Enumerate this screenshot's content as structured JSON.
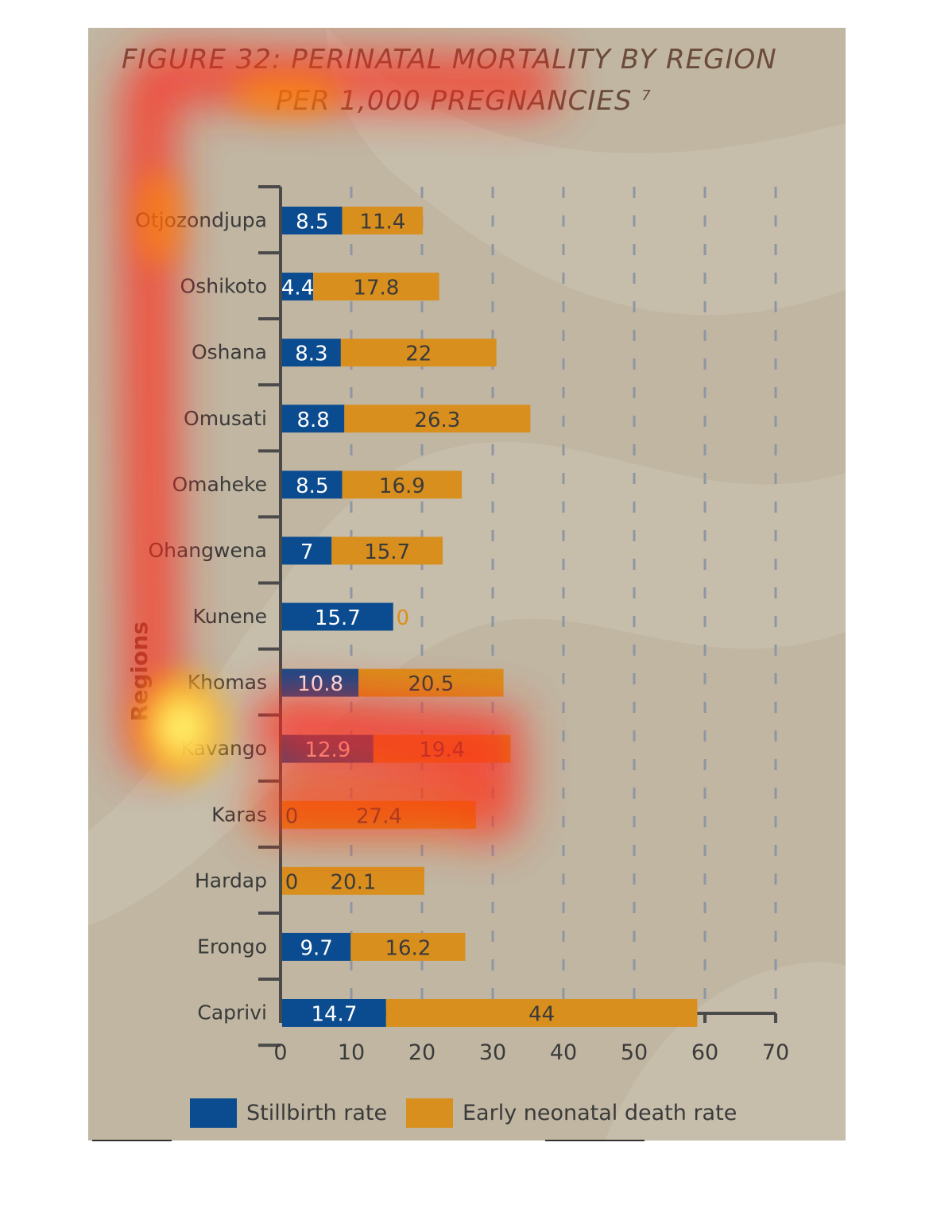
{
  "colors": {
    "stillbirth": "#0b4b8f",
    "early_neonatal": "#d98f1e",
    "axis": "#4a4a4a",
    "grid": "#8e96a4",
    "region_label": "#3a3a3a",
    "title": "#6b4b3a"
  },
  "title": {
    "line1": "FIGURE 32: PERINATAL MORTALITY BY REGION",
    "line2": "PER 1,000 PREGNANCIES",
    "footnote": "7"
  },
  "chart_data": {
    "type": "bar",
    "orientation": "horizontal",
    "stacked": true,
    "ylabel": "Regions",
    "xlim": [
      0,
      70
    ],
    "xticks": [
      "0",
      "10",
      "20",
      "30",
      "40",
      "50",
      "60",
      "70"
    ],
    "grid": "vertical dashed",
    "legend_position": "bottom",
    "categories": [
      "Otjozondjupa",
      "Oshikoto",
      "Oshana",
      "Omusati",
      "Omaheke",
      "Ohangwena",
      "Kunene",
      "Khomas",
      "Kavango",
      "Karas",
      "Hardap",
      "Erongo",
      "Caprivi"
    ],
    "series": [
      {
        "name": "Stillbirth rate",
        "color": "#0b4b8f",
        "values": [
          8.5,
          4.4,
          8.3,
          8.8,
          8.5,
          7,
          15.7,
          10.8,
          12.9,
          0,
          0,
          9.7,
          14.7
        ],
        "labels": [
          "8.5",
          "4.4",
          "8.3",
          "8.8",
          "8.5",
          "7",
          "15.7",
          "10.8",
          "12.9",
          "0",
          "0",
          "9.7",
          "14.7"
        ]
      },
      {
        "name": "Early neonatal death rate",
        "color": "#d98f1e",
        "values": [
          11.4,
          17.8,
          22,
          26.3,
          16.9,
          15.7,
          0,
          20.5,
          19.4,
          27.4,
          20.1,
          16.2,
          44
        ],
        "labels": [
          "11.4",
          "17.8",
          "22",
          "26.3",
          "16.9",
          "15.7",
          "0",
          "20.5",
          "19.4",
          "27.4",
          "20.1",
          "16.2",
          "44"
        ]
      }
    ]
  },
  "legend": {
    "stillbirth": "Stillbirth rate",
    "early_neonatal": "Early neonatal death rate"
  }
}
